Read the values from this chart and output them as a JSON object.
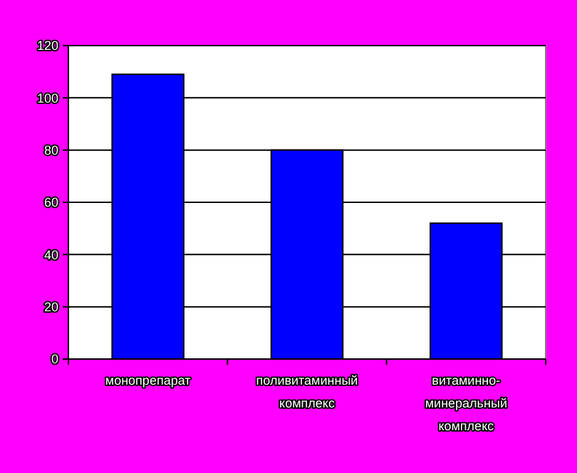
{
  "chart_data": {
    "type": "bar",
    "categories": [
      "монопрепарат",
      "поливитаминный комплекс",
      "витаминно-минеральный комплекс"
    ],
    "values": [
      109,
      80,
      52
    ],
    "color": "#0000ff",
    "ylim": [
      0,
      120
    ],
    "yticks": [
      0,
      20,
      40,
      60,
      80,
      100,
      120
    ],
    "grid": "y"
  }
}
